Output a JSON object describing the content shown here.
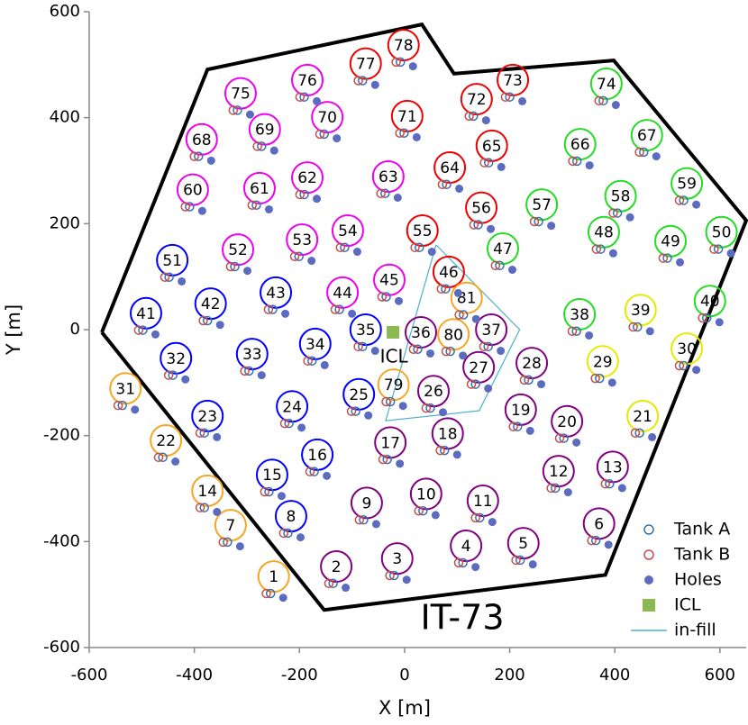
{
  "chart_data": {
    "type": "scatter",
    "title": "IT-73",
    "x_label": "X [m]",
    "y_label": "Y [m]",
    "xlim": [
      -600,
      650
    ],
    "ylim": [
      -600,
      600
    ],
    "xticks": [
      -600,
      -400,
      -200,
      0,
      200,
      400,
      600
    ],
    "yticks": [
      -600,
      -400,
      -200,
      0,
      200,
      400,
      600
    ],
    "legend": "bottom-right",
    "stations": {
      "labels": [
        "1",
        "2",
        "3",
        "4",
        "5",
        "6",
        "7",
        "8",
        "9",
        "10",
        "11",
        "12",
        "13",
        "14",
        "15",
        "16",
        "17",
        "18",
        "19",
        "20",
        "21",
        "22",
        "23",
        "24",
        "25",
        "26",
        "27",
        "28",
        "29",
        "30",
        "31",
        "32",
        "33",
        "34",
        "35",
        "36",
        "37",
        "38",
        "39",
        "40",
        "41",
        "42",
        "43",
        "44",
        "45",
        "46",
        "47",
        "48",
        "49",
        "50",
        "51",
        "52",
        "53",
        "54",
        "55",
        "56",
        "57",
        "58",
        "59",
        "60",
        "61",
        "62",
        "63",
        "64",
        "65",
        "66",
        "67",
        "68",
        "69",
        "70",
        "71",
        "72",
        "73",
        "74",
        "75",
        "76",
        "77",
        "78",
        "79",
        "80",
        "81"
      ],
      "x": [
        -249,
        -130,
        -14,
        117,
        226,
        370,
        -331,
        -216,
        -72,
        41,
        149,
        293,
        396,
        -375,
        -252,
        -166,
        -27,
        82,
        221,
        309,
        453,
        -454,
        -375,
        -214,
        -87,
        55,
        141,
        242,
        377,
        537,
        -531,
        -435,
        -290,
        -170,
        -74,
        31,
        165,
        333,
        449,
        581,
        -492,
        -369,
        -245,
        -118,
        -29,
        84,
        187,
        379,
        506,
        603,
        -442,
        -317,
        -195,
        -108,
        34,
        146,
        261,
        411,
        537,
        -403,
        -276,
        -185,
        -31,
        86,
        166,
        334,
        461,
        -386,
        -266,
        -147,
        5,
        137,
        206,
        384,
        -312,
        -185,
        -74,
        -2,
        -21,
        93,
        118
      ],
      "y": [
        -466,
        -447,
        -432,
        -408,
        -403,
        -366,
        -369,
        -352,
        -327,
        -310,
        -323,
        -267,
        -259,
        -304,
        -274,
        -236,
        -213,
        -196,
        -151,
        -173,
        -163,
        -209,
        -163,
        -145,
        -122,
        -116,
        -71,
        -63,
        -60,
        -36,
        -111,
        -54,
        -46,
        -27,
        0,
        -5,
        0,
        29,
        37,
        54,
        31,
        49,
        70,
        70,
        94,
        109,
        153,
        184,
        167,
        184,
        131,
        151,
        170,
        187,
        187,
        230,
        236,
        252,
        276,
        264,
        267,
        287,
        289,
        306,
        347,
        350,
        367,
        359,
        378,
        401,
        403,
        435,
        471,
        464,
        446,
        471,
        502,
        537,
        -104,
        -9,
        60
      ],
      "colors": [
        "#f5a623",
        "#800080",
        "#800080",
        "#800080",
        "#800080",
        "#800080",
        "#f5a623",
        "#0000ff",
        "#800080",
        "#800080",
        "#800080",
        "#800080",
        "#800080",
        "#f5a623",
        "#0000ff",
        "#0000ff",
        "#800080",
        "#800080",
        "#800080",
        "#800080",
        "#e8e800",
        "#f5a623",
        "#0000ff",
        "#0000ff",
        "#0000ff",
        "#800080",
        "#800080",
        "#800080",
        "#e8e800",
        "#e8e800",
        "#f5a623",
        "#0000ff",
        "#0000ff",
        "#0000ff",
        "#0000ff",
        "#800080",
        "#800080",
        "#22dd22",
        "#e8e800",
        "#22dd22",
        "#0000ff",
        "#0000ff",
        "#0000ff",
        "#ee00ee",
        "#ee00ee",
        "#ee0000",
        "#22dd22",
        "#22dd22",
        "#22dd22",
        "#22dd22",
        "#0000ff",
        "#ee00ee",
        "#ee00ee",
        "#ee00ee",
        "#ee0000",
        "#ee0000",
        "#22dd22",
        "#22dd22",
        "#22dd22",
        "#ee00ee",
        "#ee00ee",
        "#ee00ee",
        "#ee00ee",
        "#ee0000",
        "#ee0000",
        "#22dd22",
        "#22dd22",
        "#ee00ee",
        "#ee00ee",
        "#ee00ee",
        "#ee0000",
        "#ee0000",
        "#ee0000",
        "#22dd22",
        "#ee00ee",
        "#ee00ee",
        "#ee0000",
        "#ee0000",
        "#f5a623",
        "#f5a623",
        "#f5a623"
      ]
    },
    "series": [
      {
        "name": "Tank A",
        "color": "#3a6fb0",
        "marker": "ring",
        "x": [
          -255,
          -136,
          -20,
          111,
          220,
          364,
          -337,
          -222,
          -78,
          35,
          143,
          287,
          390,
          -381,
          -258,
          -172,
          -33,
          76,
          215,
          303,
          447,
          -460,
          -381,
          -220,
          -93,
          49,
          135,
          236,
          371,
          531,
          -537,
          -441,
          -296,
          -176,
          -80,
          25,
          159,
          327,
          443,
          575,
          -498,
          -375,
          -251,
          -124,
          -35,
          78,
          181,
          373,
          500,
          597,
          -448,
          -323,
          -201,
          -114,
          28,
          140,
          255,
          405,
          531,
          -409,
          -282,
          -191,
          -37,
          80,
          160,
          328,
          455,
          -392,
          -272,
          -153,
          -1,
          131,
          200,
          378,
          -318,
          -191,
          -80,
          -8,
          -27,
          87,
          112
        ],
        "y": [
          -498,
          -479,
          -464,
          -440,
          -435,
          -398,
          -401,
          -384,
          -359,
          -342,
          -355,
          -299,
          -291,
          -336,
          -306,
          -268,
          -245,
          -228,
          -183,
          -205,
          -195,
          -241,
          -195,
          -177,
          -154,
          -148,
          -103,
          -95,
          -92,
          -68,
          -143,
          -86,
          -78,
          -59,
          -32,
          -37,
          -32,
          -3,
          5,
          22,
          -1,
          17,
          38,
          38,
          62,
          77,
          121,
          152,
          135,
          152,
          99,
          119,
          138,
          155,
          155,
          198,
          204,
          220,
          244,
          232,
          235,
          255,
          257,
          274,
          315,
          318,
          335,
          327,
          346,
          369,
          371,
          403,
          439,
          432,
          414,
          439,
          470,
          505,
          -136,
          -41,
          28
        ]
      },
      {
        "name": "Tank B",
        "color": "#c0504d",
        "marker": "ring",
        "x": [
          -263,
          -144,
          -28,
          103,
          212,
          356,
          -345,
          -230,
          -86,
          27,
          135,
          279,
          382,
          -389,
          -266,
          -180,
          -41,
          68,
          207,
          295,
          439,
          -468,
          -389,
          -228,
          -101,
          41,
          127,
          228,
          363,
          523,
          -545,
          -449,
          -304,
          -184,
          -88,
          17,
          151,
          319,
          435,
          567,
          -506,
          -383,
          -259,
          -132,
          -43,
          70,
          173,
          365,
          492,
          589,
          -456,
          -331,
          -209,
          -122,
          20,
          132,
          247,
          397,
          523,
          -417,
          -290,
          -199,
          -45,
          72,
          152,
          320,
          447,
          -400,
          -280,
          -161,
          -9,
          123,
          192,
          370,
          -326,
          -199,
          -88,
          -16,
          -35,
          79,
          104
        ],
        "y": [
          -498,
          -479,
          -464,
          -440,
          -435,
          -398,
          -401,
          -384,
          -359,
          -342,
          -355,
          -299,
          -291,
          -336,
          -306,
          -268,
          -245,
          -228,
          -183,
          -205,
          -195,
          -241,
          -195,
          -177,
          -154,
          -148,
          -103,
          -95,
          -92,
          -68,
          -143,
          -86,
          -78,
          -59,
          -32,
          -37,
          -32,
          -3,
          5,
          22,
          -1,
          17,
          38,
          38,
          62,
          77,
          121,
          152,
          135,
          152,
          99,
          119,
          138,
          155,
          155,
          198,
          204,
          220,
          244,
          232,
          235,
          255,
          257,
          274,
          315,
          318,
          335,
          327,
          346,
          369,
          371,
          403,
          439,
          432,
          414,
          439,
          470,
          505,
          -136,
          -41,
          28
        ]
      },
      {
        "name": "Holes",
        "color": "#5b6bc0",
        "marker": "dot",
        "x": [
          -231,
          -112,
          4,
          135,
          244,
          388,
          -313,
          -198,
          -54,
          59,
          167,
          311,
          414,
          -357,
          -234,
          -148,
          -9,
          100,
          239,
          327,
          471,
          -436,
          -357,
          -196,
          -69,
          73,
          159,
          260,
          395,
          555,
          -513,
          -417,
          -272,
          -152,
          -56,
          49,
          183,
          351,
          467,
          599,
          -474,
          -351,
          -227,
          -100,
          -11,
          102,
          205,
          397,
          524,
          621,
          -424,
          -299,
          -177,
          -90,
          52,
          164,
          279,
          429,
          555,
          -385,
          -258,
          -167,
          -13,
          104,
          184,
          352,
          479,
          -368,
          -248,
          -129,
          23,
          155,
          224,
          402,
          -294,
          -167,
          -56,
          16,
          -3,
          111,
          136
        ],
        "y": [
          -506,
          -487,
          -472,
          -448,
          -443,
          -406,
          -409,
          -392,
          -367,
          -350,
          -363,
          -307,
          -299,
          -344,
          -314,
          -276,
          -253,
          -236,
          -191,
          -213,
          -203,
          -249,
          -203,
          -185,
          -162,
          -156,
          -111,
          -103,
          -100,
          -76,
          -151,
          -94,
          -86,
          -67,
          -40,
          -45,
          -40,
          -11,
          -3,
          14,
          -9,
          9,
          30,
          30,
          54,
          69,
          113,
          144,
          127,
          144,
          91,
          111,
          130,
          147,
          147,
          190,
          196,
          212,
          236,
          224,
          227,
          247,
          249,
          266,
          307,
          310,
          327,
          319,
          338,
          361,
          363,
          395,
          431,
          424,
          406,
          431,
          462,
          497,
          -144,
          -49,
          20
        ]
      }
    ],
    "icl": {
      "name": "ICL",
      "color": "#8cb852",
      "x": -22,
      "y": -5
    },
    "infill": {
      "name": "in-fill",
      "color": "#4bb0c8",
      "x": [
        60,
        219,
        142,
        -36,
        60
      ],
      "y": [
        160,
        0,
        -153,
        -172,
        160
      ]
    },
    "boundary": {
      "color": "#000000",
      "x": [
        -576,
        -375,
        33,
        94,
        398,
        650,
        382,
        -153,
        -576
      ],
      "y": [
        -5,
        491,
        576,
        483,
        508,
        206,
        -463,
        -529,
        -5
      ]
    }
  }
}
